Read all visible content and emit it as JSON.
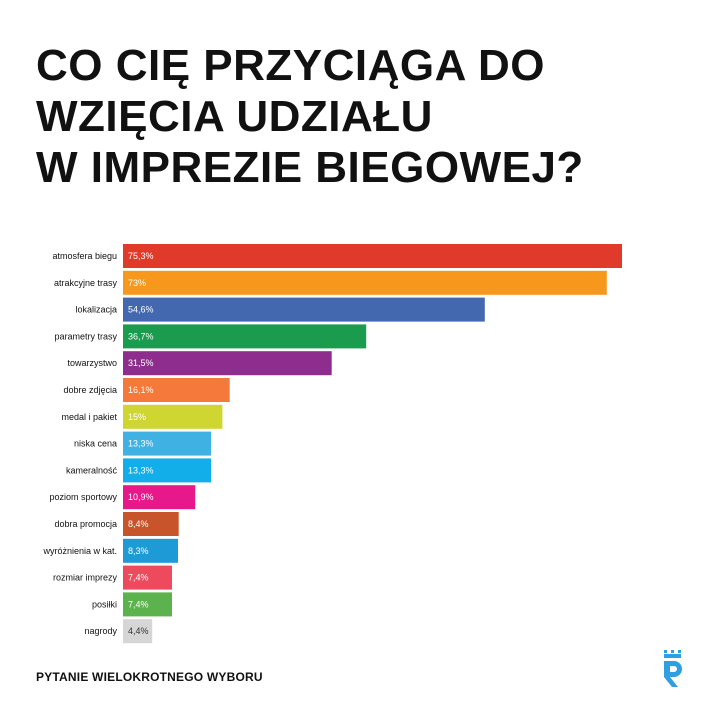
{
  "title_lines": [
    "CO CIĘ PRZYCIĄGA DO",
    "WZIĘCIA UDZIAŁU",
    "W IMPREZIE BIEGOWEJ?"
  ],
  "footer": "PYTANIE WIELOKROTNEGO WYBORU",
  "brand_color": "#2f9fe0",
  "logo_icon": "runner-logo-icon",
  "chart_data": {
    "type": "bar",
    "orientation": "horizontal",
    "xlim": [
      0,
      75.3
    ],
    "grid": false,
    "legend": "none",
    "categories": [
      "atmosfera biegu",
      "atrakcyjne trasy",
      "lokalizacja",
      "parametry trasy",
      "towarzystwo",
      "dobre zdjęcia",
      "medal i pakiet",
      "niska cena",
      "kameralność",
      "poziom sportowy",
      "dobra promocja",
      "wyróżnienia w kat.",
      "rozmiar imprezy",
      "posiłki",
      "nagrody"
    ],
    "values": [
      75.3,
      73,
      54.6,
      36.7,
      31.5,
      16.1,
      15,
      13.3,
      13.3,
      10.9,
      8.4,
      8.3,
      7.4,
      7.4,
      4.4
    ],
    "value_labels": [
      "75,3%",
      "73%",
      "54,6%",
      "36,7%",
      "31,5%",
      "16,1%",
      "15%",
      "13,3%",
      "13,3%",
      "10,9%",
      "8,4%",
      "8,3%",
      "7,4%",
      "7,4%",
      "4,4%"
    ],
    "colors": [
      "#e03a2a",
      "#f7981d",
      "#4468b0",
      "#1b9b4d",
      "#8e2d8e",
      "#f5793a",
      "#cfd531",
      "#3fb2e3",
      "#12aee9",
      "#e7198a",
      "#c8542b",
      "#1e9bd7",
      "#ee4a5d",
      "#5cb24c",
      "#d6d6d6"
    ]
  }
}
